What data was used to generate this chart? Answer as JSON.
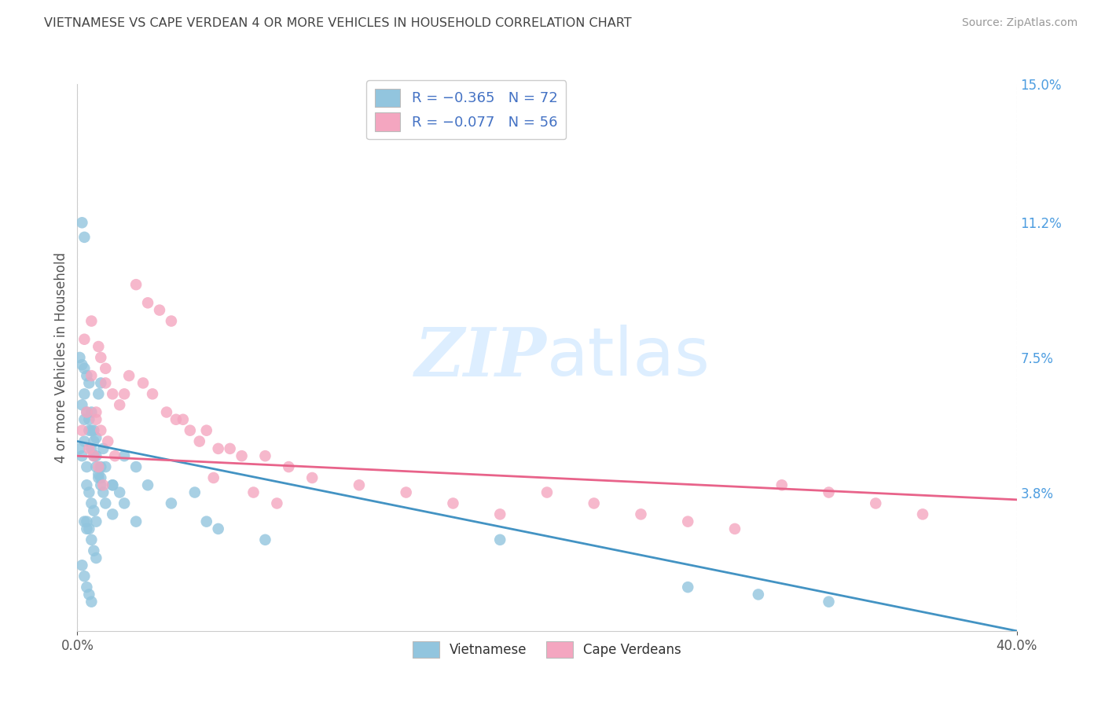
{
  "title": "VIETNAMESE VS CAPE VERDEAN 4 OR MORE VEHICLES IN HOUSEHOLD CORRELATION CHART",
  "source": "Source: ZipAtlas.com",
  "ylabel": "4 or more Vehicles in Household",
  "xlim": [
    0.0,
    0.4
  ],
  "ylim": [
    0.0,
    0.15
  ],
  "right_yticks": [
    0.0,
    0.038,
    0.075,
    0.112,
    0.15
  ],
  "right_yticklabels": [
    "",
    "3.8%",
    "7.5%",
    "11.2%",
    "15.0%"
  ],
  "watermark_zip": "ZIP",
  "watermark_atlas": "atlas",
  "legend_label1": "Vietnamese",
  "legend_label2": "Cape Verdeans",
  "blue_scatter_color": "#92c5de",
  "pink_scatter_color": "#f4a6c0",
  "blue_line_color": "#4393c3",
  "pink_line_color": "#e8638a",
  "legend_text_color": "#4472c4",
  "title_color": "#444444",
  "source_color": "#999999",
  "axis_color": "#cccccc",
  "right_axis_color": "#4d9de0",
  "watermark_color": "#ddeeff",
  "background_color": "#ffffff",
  "viet_x": [
    0.001,
    0.002,
    0.003,
    0.004,
    0.005,
    0.006,
    0.007,
    0.008,
    0.009,
    0.01,
    0.002,
    0.003,
    0.004,
    0.005,
    0.006,
    0.007,
    0.008,
    0.009,
    0.01,
    0.011,
    0.003,
    0.004,
    0.005,
    0.006,
    0.007,
    0.008,
    0.009,
    0.01,
    0.011,
    0.012,
    0.002,
    0.003,
    0.004,
    0.005,
    0.006,
    0.007,
    0.008,
    0.012,
    0.015,
    0.018,
    0.001,
    0.002,
    0.003,
    0.004,
    0.005,
    0.006,
    0.007,
    0.008,
    0.003,
    0.004,
    0.02,
    0.025,
    0.03,
    0.04,
    0.05,
    0.055,
    0.06,
    0.08,
    0.01,
    0.015,
    0.002,
    0.003,
    0.004,
    0.005,
    0.006,
    0.02,
    0.015,
    0.025,
    0.18,
    0.32,
    0.26,
    0.29
  ],
  "viet_y": [
    0.05,
    0.048,
    0.052,
    0.045,
    0.058,
    0.06,
    0.055,
    0.053,
    0.065,
    0.068,
    0.112,
    0.108,
    0.04,
    0.038,
    0.035,
    0.033,
    0.03,
    0.042,
    0.045,
    0.05,
    0.072,
    0.07,
    0.068,
    0.055,
    0.052,
    0.048,
    0.043,
    0.04,
    0.038,
    0.035,
    0.062,
    0.058,
    0.03,
    0.028,
    0.025,
    0.022,
    0.02,
    0.045,
    0.04,
    0.038,
    0.075,
    0.073,
    0.065,
    0.06,
    0.055,
    0.05,
    0.048,
    0.045,
    0.03,
    0.028,
    0.048,
    0.045,
    0.04,
    0.035,
    0.038,
    0.03,
    0.028,
    0.025,
    0.042,
    0.04,
    0.018,
    0.015,
    0.012,
    0.01,
    0.008,
    0.035,
    0.032,
    0.03,
    0.025,
    0.008,
    0.012,
    0.01
  ],
  "cape_x": [
    0.002,
    0.004,
    0.006,
    0.008,
    0.01,
    0.012,
    0.005,
    0.007,
    0.009,
    0.011,
    0.003,
    0.006,
    0.009,
    0.012,
    0.015,
    0.018,
    0.008,
    0.01,
    0.013,
    0.016,
    0.02,
    0.025,
    0.03,
    0.035,
    0.04,
    0.022,
    0.028,
    0.032,
    0.038,
    0.045,
    0.055,
    0.065,
    0.08,
    0.09,
    0.1,
    0.12,
    0.14,
    0.16,
    0.18,
    0.2,
    0.22,
    0.24,
    0.26,
    0.28,
    0.3,
    0.32,
    0.34,
    0.36,
    0.048,
    0.06,
    0.07,
    0.042,
    0.052,
    0.058,
    0.075,
    0.085
  ],
  "cape_y": [
    0.055,
    0.06,
    0.07,
    0.058,
    0.075,
    0.068,
    0.05,
    0.048,
    0.045,
    0.04,
    0.08,
    0.085,
    0.078,
    0.072,
    0.065,
    0.062,
    0.06,
    0.055,
    0.052,
    0.048,
    0.065,
    0.095,
    0.09,
    0.088,
    0.085,
    0.07,
    0.068,
    0.065,
    0.06,
    0.058,
    0.055,
    0.05,
    0.048,
    0.045,
    0.042,
    0.04,
    0.038,
    0.035,
    0.032,
    0.038,
    0.035,
    0.032,
    0.03,
    0.028,
    0.04,
    0.038,
    0.035,
    0.032,
    0.055,
    0.05,
    0.048,
    0.058,
    0.052,
    0.042,
    0.038,
    0.035
  ]
}
